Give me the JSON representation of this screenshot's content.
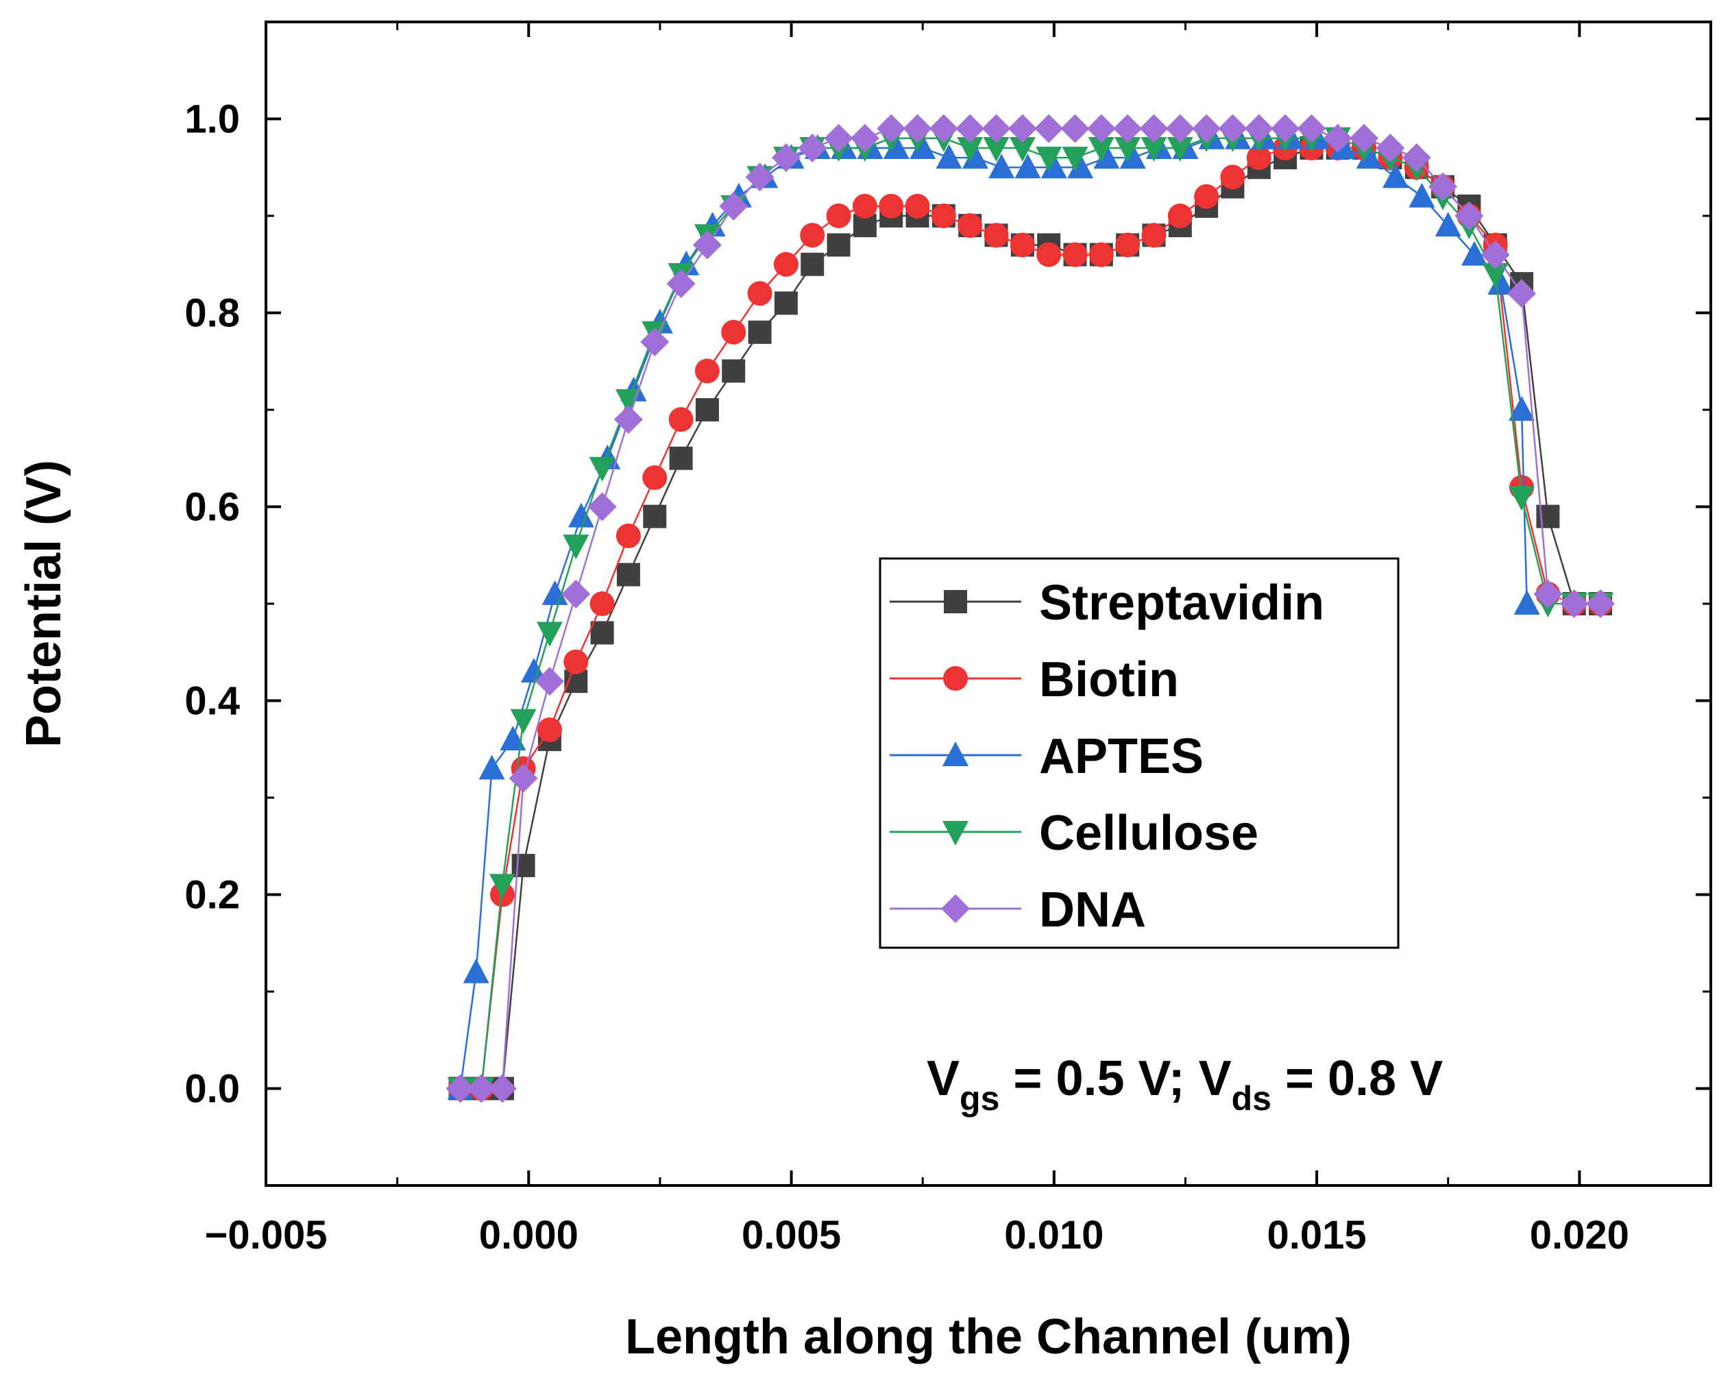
{
  "chart_data": {
    "type": "line",
    "title": "",
    "xlabel": "Length along the Channel (um)",
    "ylabel": "Potential (V)",
    "xlim": [
      -0.005,
      0.0225
    ],
    "ylim": [
      -0.1,
      1.1
    ],
    "xticks": [
      -0.005,
      0.0,
      0.005,
      0.01,
      0.015,
      0.02
    ],
    "xtick_labels": [
      "−0.005",
      "0.000",
      "0.005",
      "0.010",
      "0.015",
      "0.020"
    ],
    "yticks": [
      0.0,
      0.2,
      0.4,
      0.6,
      0.8,
      1.0
    ],
    "ytick_labels": [
      "0.0",
      "0.2",
      "0.4",
      "0.6",
      "0.8",
      "1.0"
    ],
    "legend_position": "center-right",
    "annotation": {
      "v1": "V",
      "s1": "gs",
      "m": " = 0.5 V; V",
      "s2": "ds",
      "e": " = 0.8 V"
    },
    "series": [
      {
        "name": "Streptavidin",
        "color": "#404040",
        "marker": "square",
        "x": [
          -0.0013,
          -0.0009,
          -0.0005,
          -0.0001,
          0.0004,
          0.0009,
          0.0014,
          0.0019,
          0.0024,
          0.0029,
          0.0034,
          0.0039,
          0.0044,
          0.0049,
          0.0054,
          0.0059,
          0.0064,
          0.0069,
          0.0074,
          0.0079,
          0.0084,
          0.0089,
          0.0094,
          0.0099,
          0.0104,
          0.0109,
          0.0114,
          0.0119,
          0.0124,
          0.0129,
          0.0134,
          0.0139,
          0.0144,
          0.0149,
          0.0154,
          0.0159,
          0.0164,
          0.0169,
          0.0174,
          0.0179,
          0.0184,
          0.0189,
          0.0194,
          0.0199,
          0.0204
        ],
        "y": [
          0.0,
          0.0,
          0.0,
          0.23,
          0.36,
          0.42,
          0.47,
          0.53,
          0.59,
          0.65,
          0.7,
          0.74,
          0.78,
          0.81,
          0.85,
          0.87,
          0.89,
          0.9,
          0.9,
          0.9,
          0.89,
          0.88,
          0.87,
          0.87,
          0.86,
          0.86,
          0.87,
          0.88,
          0.89,
          0.91,
          0.93,
          0.95,
          0.96,
          0.97,
          0.97,
          0.97,
          0.96,
          0.95,
          0.93,
          0.91,
          0.87,
          0.83,
          0.59,
          0.5,
          0.5
        ]
      },
      {
        "name": "Biotin",
        "color": "#ee3333",
        "marker": "circle",
        "x": [
          -0.0013,
          -0.0009,
          -0.0005,
          -0.0001,
          0.0004,
          0.0009,
          0.0014,
          0.0019,
          0.0024,
          0.0029,
          0.0034,
          0.0039,
          0.0044,
          0.0049,
          0.0054,
          0.0059,
          0.0064,
          0.0069,
          0.0074,
          0.0079,
          0.0084,
          0.0089,
          0.0094,
          0.0099,
          0.0104,
          0.0109,
          0.0114,
          0.0119,
          0.0124,
          0.0129,
          0.0134,
          0.0139,
          0.0144,
          0.0149,
          0.0154,
          0.0159,
          0.0164,
          0.0169,
          0.0174,
          0.0179,
          0.0184,
          0.0189,
          0.0194,
          0.0199,
          0.0204
        ],
        "y": [
          0.0,
          0.0,
          0.2,
          0.33,
          0.37,
          0.44,
          0.5,
          0.57,
          0.63,
          0.69,
          0.74,
          0.78,
          0.82,
          0.85,
          0.88,
          0.9,
          0.91,
          0.91,
          0.91,
          0.9,
          0.89,
          0.88,
          0.87,
          0.86,
          0.86,
          0.86,
          0.87,
          0.88,
          0.9,
          0.92,
          0.94,
          0.96,
          0.97,
          0.97,
          0.97,
          0.97,
          0.96,
          0.95,
          0.93,
          0.9,
          0.87,
          0.62,
          0.51,
          0.5,
          0.5
        ]
      },
      {
        "name": "APTES",
        "color": "#2a6fd6",
        "marker": "triangle-up",
        "x": [
          -0.0013,
          -0.001,
          -0.0007,
          -0.0003,
          0.0001,
          0.0005,
          0.001,
          0.0015,
          0.002,
          0.0025,
          0.003,
          0.0035,
          0.004,
          0.0045,
          0.005,
          0.0055,
          0.006,
          0.0065,
          0.007,
          0.0075,
          0.008,
          0.0085,
          0.009,
          0.0095,
          0.01,
          0.0105,
          0.011,
          0.0115,
          0.012,
          0.0125,
          0.013,
          0.0135,
          0.014,
          0.0145,
          0.015,
          0.0155,
          0.016,
          0.0165,
          0.017,
          0.0175,
          0.018,
          0.0185,
          0.0189,
          0.019
        ],
        "y": [
          0.0,
          0.12,
          0.33,
          0.36,
          0.43,
          0.51,
          0.59,
          0.65,
          0.72,
          0.79,
          0.85,
          0.89,
          0.92,
          0.94,
          0.96,
          0.97,
          0.97,
          0.97,
          0.97,
          0.97,
          0.96,
          0.96,
          0.95,
          0.95,
          0.95,
          0.95,
          0.96,
          0.96,
          0.97,
          0.97,
          0.98,
          0.98,
          0.98,
          0.98,
          0.98,
          0.97,
          0.96,
          0.94,
          0.92,
          0.89,
          0.86,
          0.83,
          0.7,
          0.5
        ]
      },
      {
        "name": "Cellulose",
        "color": "#23a05a",
        "marker": "triangle-down",
        "x": [
          -0.0013,
          -0.0009,
          -0.0005,
          -0.0001,
          0.0004,
          0.0009,
          0.0014,
          0.0019,
          0.0024,
          0.0029,
          0.0034,
          0.0039,
          0.0044,
          0.0049,
          0.0054,
          0.0059,
          0.0064,
          0.0069,
          0.0074,
          0.0079,
          0.0084,
          0.0089,
          0.0094,
          0.0099,
          0.0104,
          0.0109,
          0.0114,
          0.0119,
          0.0124,
          0.0129,
          0.0134,
          0.0139,
          0.0144,
          0.0149,
          0.0154,
          0.0159,
          0.0164,
          0.0169,
          0.0174,
          0.0179,
          0.0184,
          0.0189,
          0.0194,
          0.0199,
          0.0204
        ],
        "y": [
          0.0,
          0.0,
          0.21,
          0.38,
          0.47,
          0.56,
          0.64,
          0.71,
          0.78,
          0.84,
          0.88,
          0.91,
          0.94,
          0.96,
          0.97,
          0.97,
          0.97,
          0.98,
          0.98,
          0.98,
          0.97,
          0.97,
          0.97,
          0.96,
          0.96,
          0.97,
          0.97,
          0.97,
          0.97,
          0.98,
          0.98,
          0.98,
          0.98,
          0.98,
          0.98,
          0.97,
          0.96,
          0.95,
          0.92,
          0.89,
          0.84,
          0.61,
          0.5,
          0.5,
          0.5
        ]
      },
      {
        "name": "DNA",
        "color": "#a070d8",
        "marker": "diamond",
        "x": [
          -0.0013,
          -0.0009,
          -0.0005,
          -0.0001,
          0.0004,
          0.0009,
          0.0014,
          0.0019,
          0.0024,
          0.0029,
          0.0034,
          0.0039,
          0.0044,
          0.0049,
          0.0054,
          0.0059,
          0.0064,
          0.0069,
          0.0074,
          0.0079,
          0.0084,
          0.0089,
          0.0094,
          0.0099,
          0.0104,
          0.0109,
          0.0114,
          0.0119,
          0.0124,
          0.0129,
          0.0134,
          0.0139,
          0.0144,
          0.0149,
          0.0154,
          0.0159,
          0.0164,
          0.0169,
          0.0174,
          0.0179,
          0.0184,
          0.0189,
          0.0194,
          0.0199,
          0.0204
        ],
        "y": [
          0.0,
          0.0,
          0.0,
          0.32,
          0.42,
          0.51,
          0.6,
          0.69,
          0.77,
          0.83,
          0.87,
          0.91,
          0.94,
          0.96,
          0.97,
          0.98,
          0.98,
          0.99,
          0.99,
          0.99,
          0.99,
          0.99,
          0.99,
          0.99,
          0.99,
          0.99,
          0.99,
          0.99,
          0.99,
          0.99,
          0.99,
          0.99,
          0.99,
          0.99,
          0.98,
          0.98,
          0.97,
          0.96,
          0.93,
          0.9,
          0.86,
          0.82,
          0.51,
          0.5,
          0.5
        ]
      }
    ]
  }
}
